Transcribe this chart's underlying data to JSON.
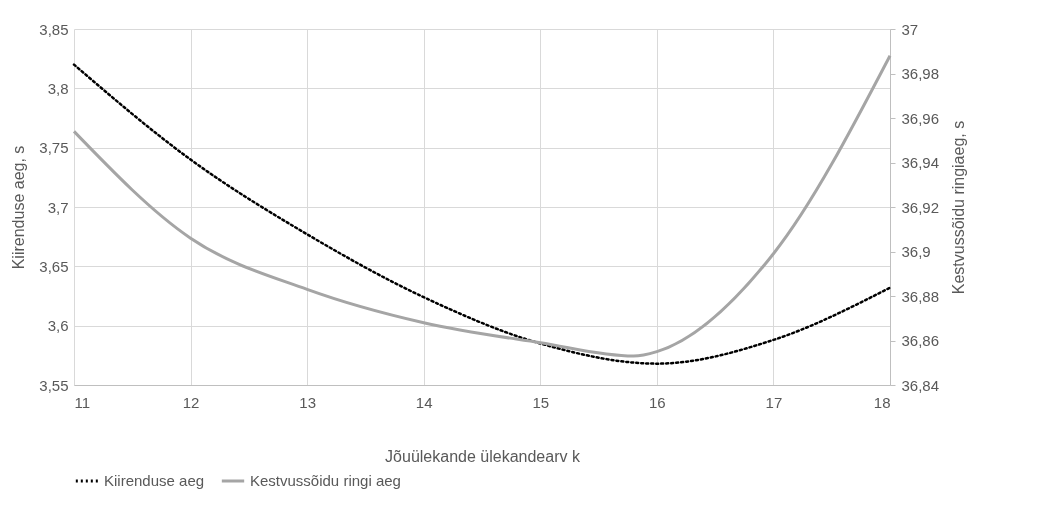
{
  "chart_data": {
    "type": "line",
    "xlabel": "Jõuülekande ülekandearv k",
    "ylabel": "Kiirenduse aeg, s",
    "y2label": "Kestvussõidu ringiaeg, s",
    "xlim": [
      11,
      18
    ],
    "xticks": [
      11,
      12,
      13,
      14,
      15,
      16,
      17,
      18
    ],
    "ylim": [
      3.55,
      3.85
    ],
    "yticks": [
      {
        "value": 3.55,
        "label": "3,55"
      },
      {
        "value": 3.6,
        "label": "3,6"
      },
      {
        "value": 3.65,
        "label": "3,65"
      },
      {
        "value": 3.7,
        "label": "3,7"
      },
      {
        "value": 3.75,
        "label": "3,75"
      },
      {
        "value": 3.8,
        "label": "3,8"
      },
      {
        "value": 3.85,
        "label": "3,85"
      }
    ],
    "y2lim": [
      36.84,
      37
    ],
    "y2ticks": [
      {
        "value": 36.84,
        "label": "36,84"
      },
      {
        "value": 36.86,
        "label": "36,86"
      },
      {
        "value": 36.88,
        "label": "36,88"
      },
      {
        "value": 36.9,
        "label": "36,9"
      },
      {
        "value": 36.92,
        "label": "36,92"
      },
      {
        "value": 36.94,
        "label": "36,94"
      },
      {
        "value": 36.96,
        "label": "36,96"
      },
      {
        "value": 36.98,
        "label": "36,98"
      },
      {
        "value": 37,
        "label": "37"
      }
    ],
    "grid": true,
    "legend": "bottom",
    "marker": "none",
    "series": [
      {
        "name": "Kiirenduse aeg",
        "color": "#000000",
        "line_style": "dotted",
        "x": [
          11,
          12,
          13,
          14,
          15,
          16,
          17,
          18
        ],
        "values": [
          3.82,
          3.74,
          3.677,
          3.624,
          3.585,
          3.568,
          3.588,
          3.632
        ]
      },
      {
        "name": "Kestvussõidu ringi aeg",
        "color": "#a5a5a5",
        "line_style": "solid",
        "axis": "y2",
        "x": [
          11,
          12,
          13,
          14,
          15,
          15.8,
          16,
          17,
          18
        ],
        "values": [
          36.954,
          36.906,
          36.883,
          36.868,
          36.859,
          36.853,
          36.855,
          36.899,
          36.988
        ]
      }
    ]
  }
}
